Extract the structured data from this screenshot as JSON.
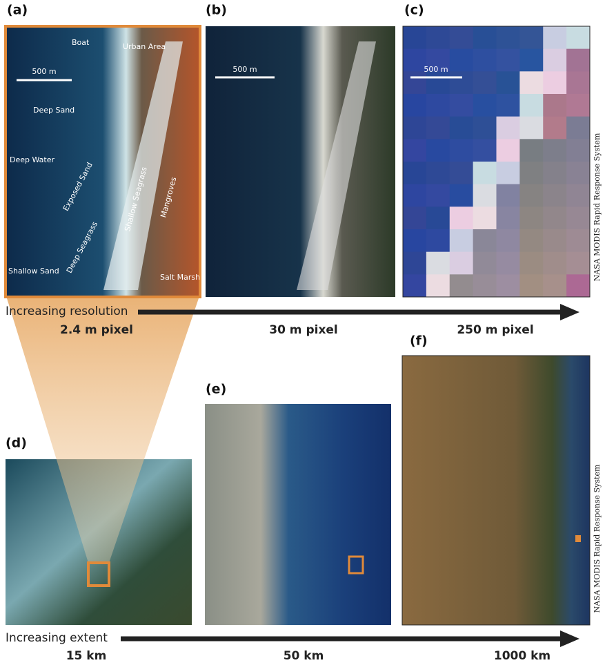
{
  "panels": [
    {
      "label": "(a)",
      "annotations": [
        "Boat",
        "Urban Area",
        "500 m",
        "Deep Sand",
        "Deep Water",
        "Exposed Sand",
        "Deep Seagrass",
        "Shallow Seagrass",
        "Mangroves",
        "Shallow Sand",
        "Salt Marsh"
      ]
    },
    {
      "label": "(b)",
      "annotations": [
        "500 m"
      ]
    },
    {
      "label": "(c)",
      "annotations": [
        "500 m"
      ],
      "credit": "NASA MODIS Rapid Response System"
    },
    {
      "label": "(d)"
    },
    {
      "label": "(e)"
    },
    {
      "label": "(f)",
      "credit": "NASA MODIS Rapid Response System"
    }
  ],
  "resolution_axis": {
    "label": "Increasing resolution",
    "steps": [
      "2.4 m pixel",
      "30 m pixel",
      "250 m pixel"
    ]
  },
  "extent_axis": {
    "label": "Increasing extent",
    "steps": [
      "15 km",
      "50 km",
      "1000 km"
    ]
  }
}
